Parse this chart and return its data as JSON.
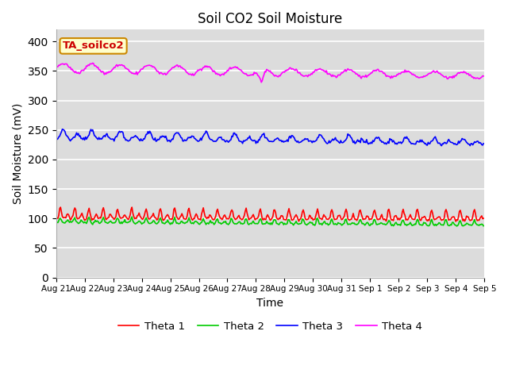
{
  "title": "Soil CO2 Soil Moisture",
  "xlabel": "Time",
  "ylabel": "Soil Moisture (mV)",
  "annotation": "TA_soilco2",
  "ylim": [
    0,
    420
  ],
  "yticks": [
    0,
    50,
    100,
    150,
    200,
    250,
    300,
    350,
    400
  ],
  "legend": [
    "Theta 1",
    "Theta 2",
    "Theta 3",
    "Theta 4"
  ],
  "colors": [
    "#ff0000",
    "#00cc00",
    "#0000ff",
    "#ff00ff"
  ],
  "line_width": 1.2,
  "bg_color": "#dcdcdc",
  "n_points": 480,
  "x_labels": [
    "Aug 21",
    "Aug 22",
    "Aug 23",
    "Aug 24",
    "Aug 25",
    "Aug 26",
    "Aug 27",
    "Aug 28",
    "Aug 29",
    "Aug 30",
    "Aug 31",
    "Sep 1",
    "Sep 2",
    "Sep 3",
    "Sep 4",
    "Sep 5"
  ],
  "annotation_facecolor": "#ffffcc",
  "annotation_edgecolor": "#cc8800",
  "annotation_textcolor": "#cc0000"
}
